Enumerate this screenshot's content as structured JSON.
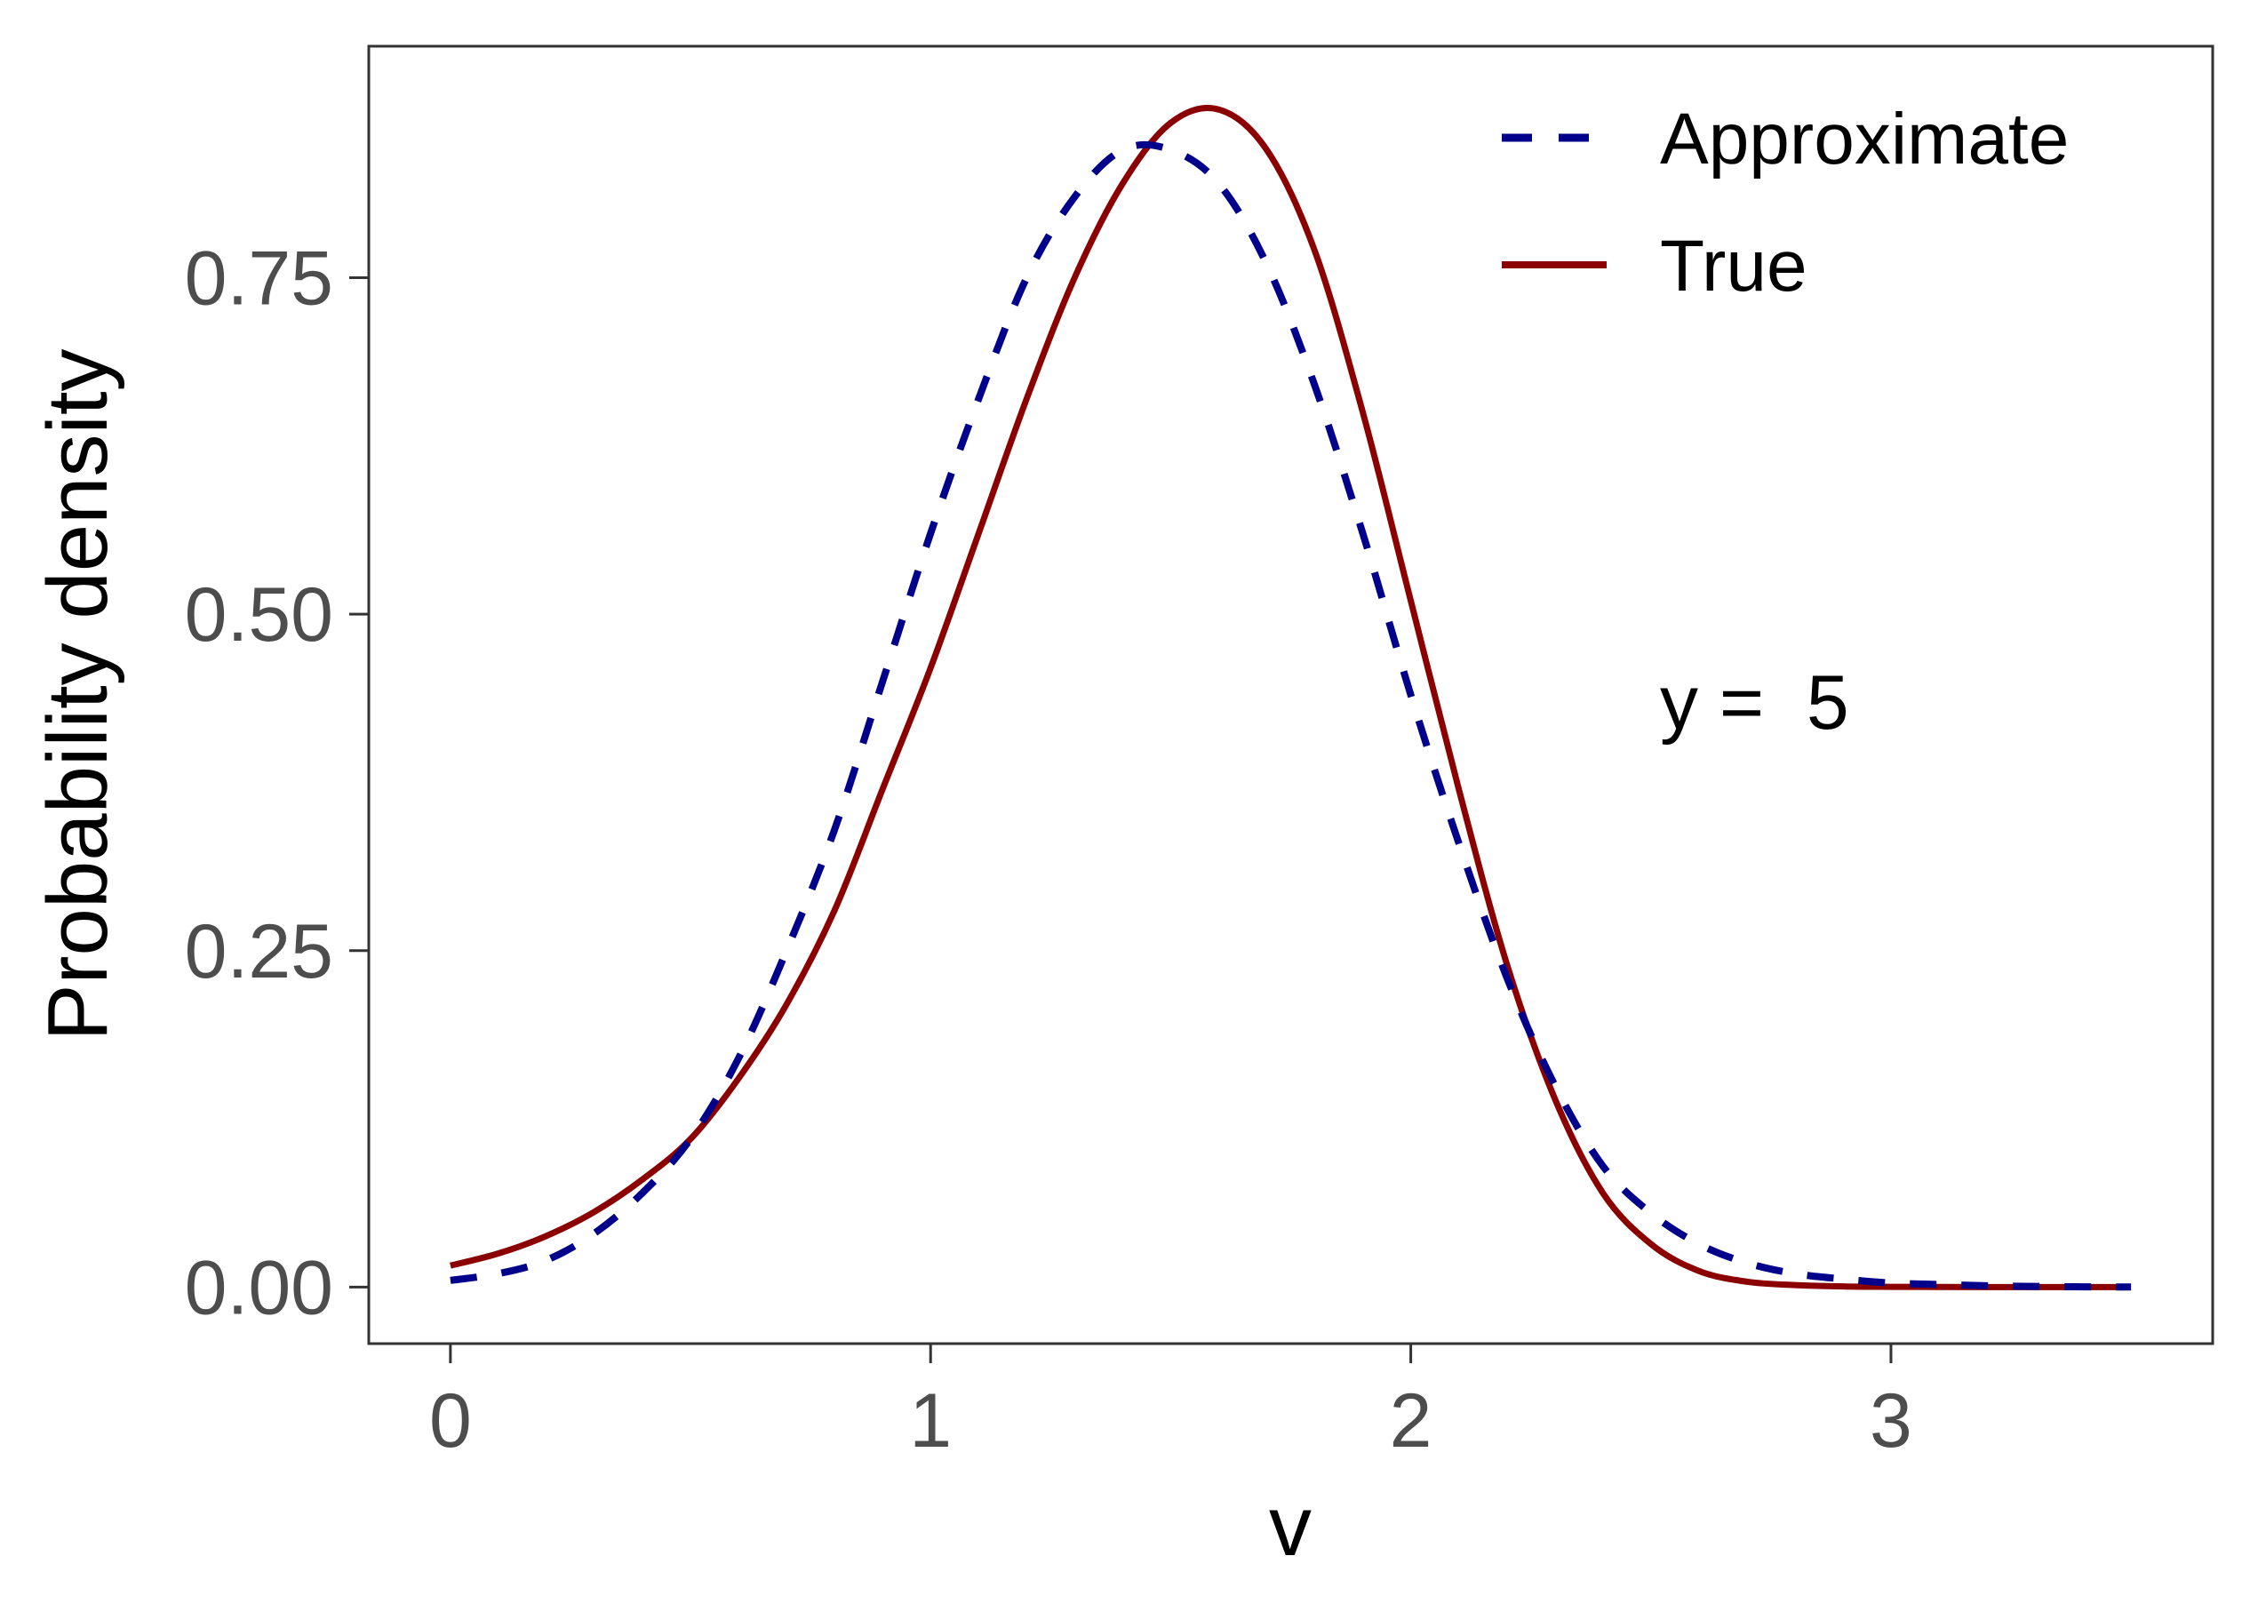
{
  "colors": {
    "approximate": "#00008B",
    "true": "#8B0000",
    "panel_border": "#333333",
    "tick_text": "#4d4d4d",
    "background": "#ffffff"
  },
  "chart_data": {
    "type": "line",
    "title": "",
    "xlabel": "v",
    "ylabel": "Probability density",
    "xlim": [
      -0.17,
      3.67
    ],
    "ylim": [
      -0.042,
      0.922
    ],
    "x_ticks": [
      0,
      1,
      2,
      3
    ],
    "x_tick_labels": [
      "0",
      "1",
      "2",
      "3"
    ],
    "y_ticks": [
      0,
      0.25,
      0.5,
      0.75
    ],
    "y_tick_labels": [
      "0.00",
      "0.25",
      "0.50",
      "0.75"
    ],
    "grid": false,
    "legend_position": "top-right",
    "legend": [
      "Approximate",
      "True"
    ],
    "annotation": "y =  5",
    "series": [
      {
        "name": "Approximate",
        "style": "dashed",
        "x": [
          0,
          0.1,
          0.2,
          0.3,
          0.4,
          0.5,
          0.6,
          0.7,
          0.8,
          0.9,
          1.0,
          1.1,
          1.2,
          1.3,
          1.4,
          1.5,
          1.6,
          1.7,
          1.8,
          1.9,
          2.0,
          2.1,
          2.2,
          2.3,
          2.4,
          2.5,
          2.6,
          2.7,
          2.8,
          2.9,
          3.0,
          3.1,
          3.2,
          3.3,
          3.4,
          3.5
        ],
        "y": [
          0.005,
          0.01,
          0.02,
          0.04,
          0.07,
          0.11,
          0.17,
          0.25,
          0.34,
          0.45,
          0.56,
          0.66,
          0.75,
          0.81,
          0.845,
          0.845,
          0.82,
          0.76,
          0.67,
          0.56,
          0.44,
          0.33,
          0.23,
          0.15,
          0.09,
          0.055,
          0.032,
          0.018,
          0.01,
          0.006,
          0.003,
          0.002,
          0.001,
          0.0005,
          0.0002,
          0.0001
        ]
      },
      {
        "name": "True",
        "style": "solid",
        "x": [
          0,
          0.1,
          0.2,
          0.3,
          0.4,
          0.5,
          0.6,
          0.7,
          0.8,
          0.9,
          1.0,
          1.1,
          1.2,
          1.3,
          1.4,
          1.5,
          1.6,
          1.7,
          1.8,
          1.9,
          2.0,
          2.1,
          2.2,
          2.3,
          2.4,
          2.5,
          2.6,
          2.7,
          2.8,
          2.9,
          3.0,
          3.1,
          3.2,
          3.3,
          3.4,
          3.5
        ],
        "y": [
          0.016,
          0.025,
          0.038,
          0.056,
          0.08,
          0.11,
          0.155,
          0.21,
          0.28,
          0.37,
          0.46,
          0.56,
          0.66,
          0.75,
          0.82,
          0.865,
          0.875,
          0.845,
          0.77,
          0.65,
          0.51,
          0.37,
          0.24,
          0.14,
          0.07,
          0.032,
          0.012,
          0.004,
          0.0015,
          0.0005,
          0.0002,
          0.0001,
          0,
          0,
          0,
          0
        ]
      }
    ]
  }
}
